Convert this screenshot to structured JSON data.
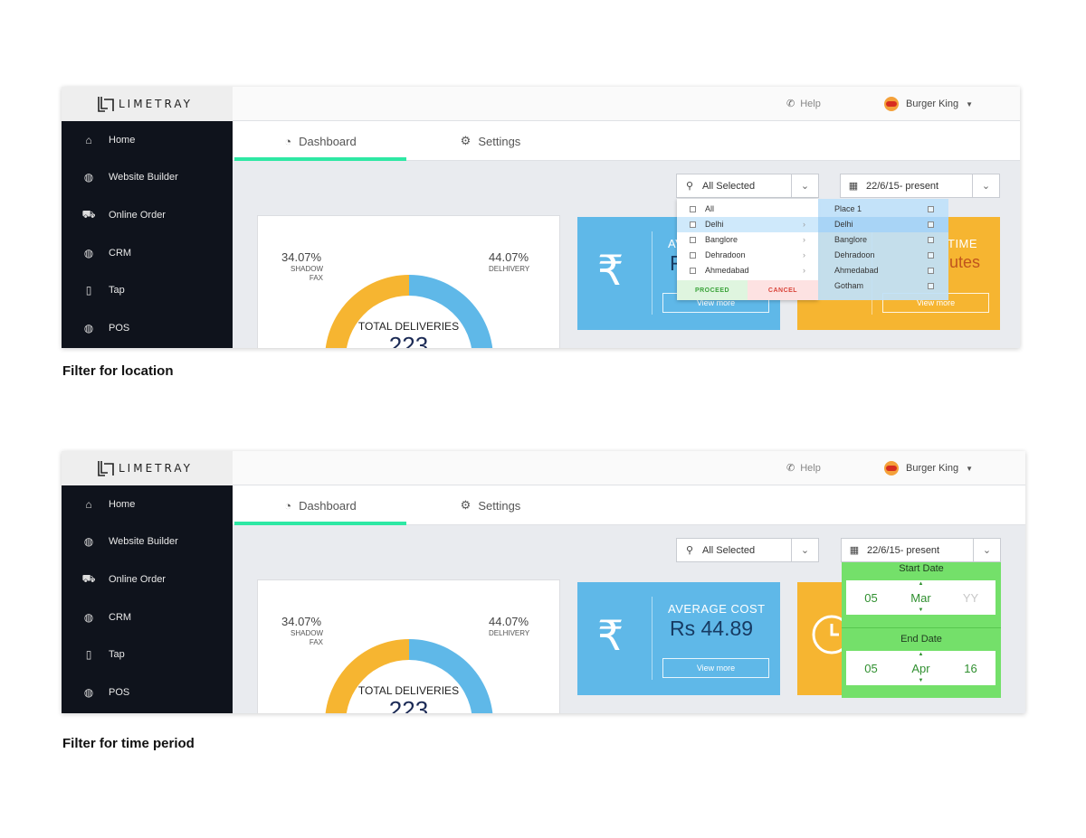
{
  "app": {
    "logo_text": "LIMETRAY",
    "help_label": "Help",
    "brand_name": "Burger King"
  },
  "sidebar": {
    "items": [
      {
        "label": "Home",
        "icon": "home-icon"
      },
      {
        "label": "Website Builder",
        "icon": "globe-icon"
      },
      {
        "label": "Online Order",
        "icon": "cart-icon"
      },
      {
        "label": "CRM",
        "icon": "globe-icon"
      },
      {
        "label": "Tap",
        "icon": "phone-icon"
      },
      {
        "label": "POS",
        "icon": "globe-icon"
      }
    ]
  },
  "tabs": [
    {
      "label": "Dashboard",
      "icon": "pie-chart-icon",
      "active": true
    },
    {
      "label": "Settings",
      "icon": "gear-icon",
      "active": false
    }
  ],
  "filters": {
    "location_value": "All Selected",
    "date_value": "22/6/15- present"
  },
  "chart": {
    "total_label": "TOTAL DELIVERIES",
    "total_value": "223",
    "left_pct": "34.07%",
    "left_name": "SHADOW FAX",
    "right_pct": "44.07%",
    "right_name": "DELHIVERY",
    "colors": {
      "yellow": "#f6b531",
      "blue": "#5fb8e8",
      "green": "#b8e986"
    }
  },
  "chart_data": {
    "type": "pie",
    "title": "TOTAL DELIVERIES",
    "total": 223,
    "series": [
      {
        "name": "SHADOW FAX",
        "value": 34.07,
        "color": "#f6b531"
      },
      {
        "name": "DELHIVERY",
        "value": 44.07,
        "color": "#5fb8e8"
      }
    ]
  },
  "cost_card": {
    "title": "AVERAGE COST",
    "value": "Rs 44.89",
    "view_more": "View more",
    "color": "#5fb8e8"
  },
  "time_card": {
    "title_fragment": "TIME",
    "value_fragment": "utes",
    "view_more": "View more",
    "color": "#f6b531"
  },
  "location_dropdown": {
    "items": [
      {
        "label": "All",
        "arrow": false,
        "selected": false
      },
      {
        "label": "Delhi",
        "arrow": true,
        "selected": true
      },
      {
        "label": "Banglore",
        "arrow": true,
        "selected": false
      },
      {
        "label": "Dehradoon",
        "arrow": true,
        "selected": false
      },
      {
        "label": "Ahmedabad",
        "arrow": true,
        "selected": false
      }
    ],
    "proceed": "PROCEED",
    "cancel": "CANCEL",
    "places": [
      {
        "label": "Place 1",
        "selected": false
      },
      {
        "label": "Delhi",
        "selected": true
      },
      {
        "label": "Banglore",
        "selected": false
      },
      {
        "label": "Dehradoon",
        "selected": false
      },
      {
        "label": "Ahmedabad",
        "selected": false
      },
      {
        "label": "Gotham",
        "selected": false
      }
    ]
  },
  "date_picker": {
    "start_label": "Start Date",
    "start": {
      "day": "05",
      "month": "Mar",
      "year": "YY"
    },
    "end_label": "End Date",
    "end": {
      "day": "05",
      "month": "Apr",
      "year": "16"
    }
  },
  "captions": {
    "first": "Filter for location",
    "second": "Filter for time period"
  }
}
